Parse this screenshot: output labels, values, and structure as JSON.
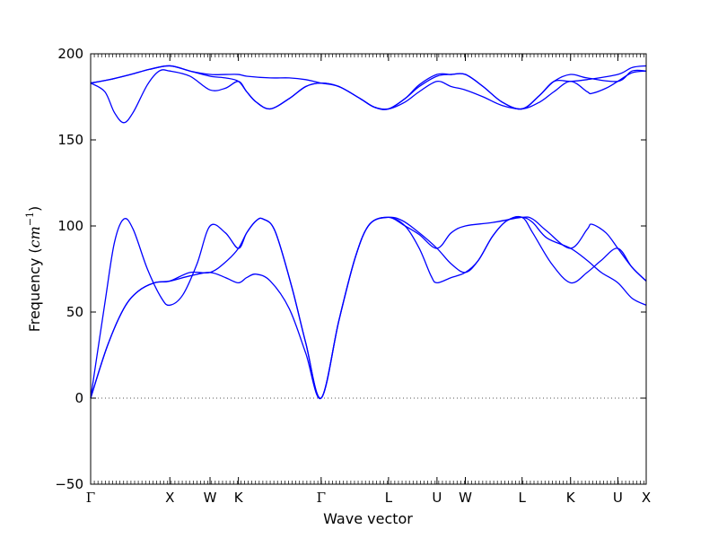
{
  "chart_data": {
    "type": "line",
    "title": "",
    "xlabel": "Wave vector",
    "ylabel": "Frequency",
    "ylabel_unit": "cm",
    "ylabel_unit_exp": "−1",
    "ylim": [
      -50,
      200
    ],
    "yticks": [
      -50,
      0,
      50,
      100,
      150,
      200
    ],
    "grid": false,
    "legend": "none",
    "line_color": "#0000ff",
    "zero_line_color": "#555555",
    "xlim": [
      0,
      2.35
    ],
    "high_symmetry_points": [
      {
        "label": "Γ",
        "x": 0.0
      },
      {
        "label": "X",
        "x": 0.335
      },
      {
        "label": "W",
        "x": 0.505
      },
      {
        "label": "K",
        "x": 0.625
      },
      {
        "label": "Γ",
        "x": 0.975
      },
      {
        "label": "L",
        "x": 1.26
      },
      {
        "label": "U",
        "x": 1.465
      },
      {
        "label": "W",
        "x": 1.585
      },
      {
        "label": "L",
        "x": 1.825
      },
      {
        "label": "K",
        "x": 2.03
      },
      {
        "label": "U",
        "x": 2.23
      },
      {
        "label": "X",
        "x": 2.35
      }
    ],
    "series": [
      {
        "values": [
          [
            0.0,
            0
          ],
          [
            0.07,
            30
          ],
          [
            0.14,
            52
          ],
          [
            0.2,
            62
          ],
          [
            0.27,
            67
          ],
          [
            0.335,
            68
          ],
          [
            0.42,
            71
          ],
          [
            0.505,
            73
          ],
          [
            0.57,
            70
          ],
          [
            0.625,
            67
          ],
          [
            0.66,
            70
          ],
          [
            0.7,
            72
          ],
          [
            0.76,
            68
          ],
          [
            0.84,
            52
          ],
          [
            0.91,
            26
          ],
          [
            0.975,
            0
          ],
          [
            1.05,
            45
          ],
          [
            1.12,
            82
          ],
          [
            1.18,
            101
          ],
          [
            1.26,
            105
          ],
          [
            1.32,
            103
          ],
          [
            1.39,
            96
          ],
          [
            1.465,
            87
          ],
          [
            1.525,
            78
          ],
          [
            1.585,
            73
          ],
          [
            1.64,
            80
          ],
          [
            1.7,
            94
          ],
          [
            1.76,
            103
          ],
          [
            1.825,
            105
          ],
          [
            1.87,
            102
          ],
          [
            1.93,
            93
          ],
          [
            2.03,
            87
          ],
          [
            2.1,
            80
          ],
          [
            2.16,
            73
          ],
          [
            2.23,
            67
          ],
          [
            2.29,
            58
          ],
          [
            2.35,
            54
          ]
        ]
      },
      {
        "values": [
          [
            0.0,
            0
          ],
          [
            0.07,
            30
          ],
          [
            0.14,
            52
          ],
          [
            0.2,
            62
          ],
          [
            0.27,
            67
          ],
          [
            0.335,
            68
          ],
          [
            0.42,
            73
          ],
          [
            0.505,
            73
          ],
          [
            0.57,
            79
          ],
          [
            0.625,
            87
          ],
          [
            0.66,
            96
          ],
          [
            0.7,
            103
          ],
          [
            0.73,
            104
          ],
          [
            0.78,
            97
          ],
          [
            0.85,
            65
          ],
          [
            0.91,
            32
          ],
          [
            0.975,
            0
          ],
          [
            1.05,
            45
          ],
          [
            1.12,
            82
          ],
          [
            1.18,
            101
          ],
          [
            1.26,
            105
          ],
          [
            1.33,
            100
          ],
          [
            1.39,
            87
          ],
          [
            1.44,
            71
          ],
          [
            1.465,
            67
          ],
          [
            1.525,
            70
          ],
          [
            1.585,
            73
          ],
          [
            1.64,
            80
          ],
          [
            1.7,
            94
          ],
          [
            1.76,
            103
          ],
          [
            1.825,
            105
          ],
          [
            1.87,
            96
          ],
          [
            1.95,
            78
          ],
          [
            2.03,
            67
          ],
          [
            2.1,
            73
          ],
          [
            2.16,
            80
          ],
          [
            2.23,
            87
          ],
          [
            2.29,
            76
          ],
          [
            2.35,
            68
          ]
        ]
      },
      {
        "values": [
          [
            0.0,
            0
          ],
          [
            0.06,
            55
          ],
          [
            0.1,
            90
          ],
          [
            0.14,
            104
          ],
          [
            0.18,
            98
          ],
          [
            0.24,
            75
          ],
          [
            0.3,
            58
          ],
          [
            0.335,
            54
          ],
          [
            0.39,
            60
          ],
          [
            0.45,
            78
          ],
          [
            0.505,
            100
          ],
          [
            0.57,
            96
          ],
          [
            0.625,
            87
          ],
          [
            0.66,
            96
          ],
          [
            0.7,
            103
          ],
          [
            0.73,
            104
          ],
          [
            0.78,
            97
          ],
          [
            0.85,
            65
          ],
          [
            0.91,
            32
          ],
          [
            0.975,
            0
          ],
          [
            1.05,
            45
          ],
          [
            1.12,
            82
          ],
          [
            1.18,
            101
          ],
          [
            1.26,
            105
          ],
          [
            1.33,
            100
          ],
          [
            1.39,
            95
          ],
          [
            1.465,
            87
          ],
          [
            1.525,
            96
          ],
          [
            1.585,
            100
          ],
          [
            1.7,
            102
          ],
          [
            1.825,
            105
          ],
          [
            1.87,
            104
          ],
          [
            1.93,
            97
          ],
          [
            2.03,
            87
          ],
          [
            2.1,
            98
          ],
          [
            2.12,
            101
          ],
          [
            2.18,
            96
          ],
          [
            2.23,
            87
          ],
          [
            2.29,
            76
          ],
          [
            2.35,
            68
          ]
        ]
      },
      {
        "values": [
          [
            0.0,
            183
          ],
          [
            0.06,
            178
          ],
          [
            0.1,
            166
          ],
          [
            0.14,
            160
          ],
          [
            0.18,
            166
          ],
          [
            0.24,
            182
          ],
          [
            0.29,
            190
          ],
          [
            0.335,
            190
          ],
          [
            0.42,
            187
          ],
          [
            0.505,
            179
          ],
          [
            0.57,
            180
          ],
          [
            0.625,
            184
          ],
          [
            0.66,
            178
          ],
          [
            0.7,
            172
          ],
          [
            0.76,
            168
          ],
          [
            0.84,
            174
          ],
          [
            0.91,
            181
          ],
          [
            0.975,
            183
          ],
          [
            1.05,
            181
          ],
          [
            1.14,
            174
          ],
          [
            1.2,
            169
          ],
          [
            1.26,
            168
          ],
          [
            1.33,
            172
          ],
          [
            1.39,
            178
          ],
          [
            1.465,
            184
          ],
          [
            1.525,
            181
          ],
          [
            1.585,
            179
          ],
          [
            1.66,
            175
          ],
          [
            1.74,
            170
          ],
          [
            1.825,
            168
          ],
          [
            1.9,
            172
          ],
          [
            1.96,
            178
          ],
          [
            2.03,
            184
          ],
          [
            2.1,
            178
          ],
          [
            2.12,
            177
          ],
          [
            2.18,
            180
          ],
          [
            2.23,
            184
          ],
          [
            2.29,
            189
          ],
          [
            2.35,
            190
          ]
        ]
      },
      {
        "values": [
          [
            0.0,
            183
          ],
          [
            0.08,
            185
          ],
          [
            0.17,
            188
          ],
          [
            0.25,
            191
          ],
          [
            0.335,
            193
          ],
          [
            0.42,
            190
          ],
          [
            0.505,
            187
          ],
          [
            0.57,
            186
          ],
          [
            0.625,
            184
          ],
          [
            0.66,
            178
          ],
          [
            0.7,
            172
          ],
          [
            0.76,
            168
          ],
          [
            0.84,
            174
          ],
          [
            0.91,
            181
          ],
          [
            0.975,
            183
          ],
          [
            1.05,
            181
          ],
          [
            1.14,
            174
          ],
          [
            1.2,
            169
          ],
          [
            1.26,
            168
          ],
          [
            1.33,
            174
          ],
          [
            1.39,
            181
          ],
          [
            1.465,
            187
          ],
          [
            1.525,
            188
          ],
          [
            1.585,
            188
          ],
          [
            1.66,
            181
          ],
          [
            1.74,
            172
          ],
          [
            1.825,
            168
          ],
          [
            1.9,
            176
          ],
          [
            1.96,
            184
          ],
          [
            2.03,
            188
          ],
          [
            2.1,
            186
          ],
          [
            2.23,
            184
          ],
          [
            2.29,
            190
          ],
          [
            2.35,
            190
          ]
        ]
      },
      {
        "values": [
          [
            0.0,
            183
          ],
          [
            0.08,
            185
          ],
          [
            0.17,
            188
          ],
          [
            0.25,
            191
          ],
          [
            0.335,
            193
          ],
          [
            0.42,
            190
          ],
          [
            0.505,
            188
          ],
          [
            0.57,
            188
          ],
          [
            0.625,
            188
          ],
          [
            0.66,
            187
          ],
          [
            0.76,
            186
          ],
          [
            0.84,
            186
          ],
          [
            0.91,
            185
          ],
          [
            0.975,
            183
          ],
          [
            1.05,
            181
          ],
          [
            1.14,
            174
          ],
          [
            1.2,
            169
          ],
          [
            1.26,
            168
          ],
          [
            1.33,
            174
          ],
          [
            1.39,
            182
          ],
          [
            1.465,
            188
          ],
          [
            1.525,
            188
          ],
          [
            1.585,
            188
          ],
          [
            1.66,
            181
          ],
          [
            1.74,
            172
          ],
          [
            1.825,
            168
          ],
          [
            1.9,
            176
          ],
          [
            1.96,
            184
          ],
          [
            2.03,
            184
          ],
          [
            2.1,
            185
          ],
          [
            2.23,
            188
          ],
          [
            2.29,
            192
          ],
          [
            2.35,
            193
          ]
        ]
      }
    ]
  }
}
